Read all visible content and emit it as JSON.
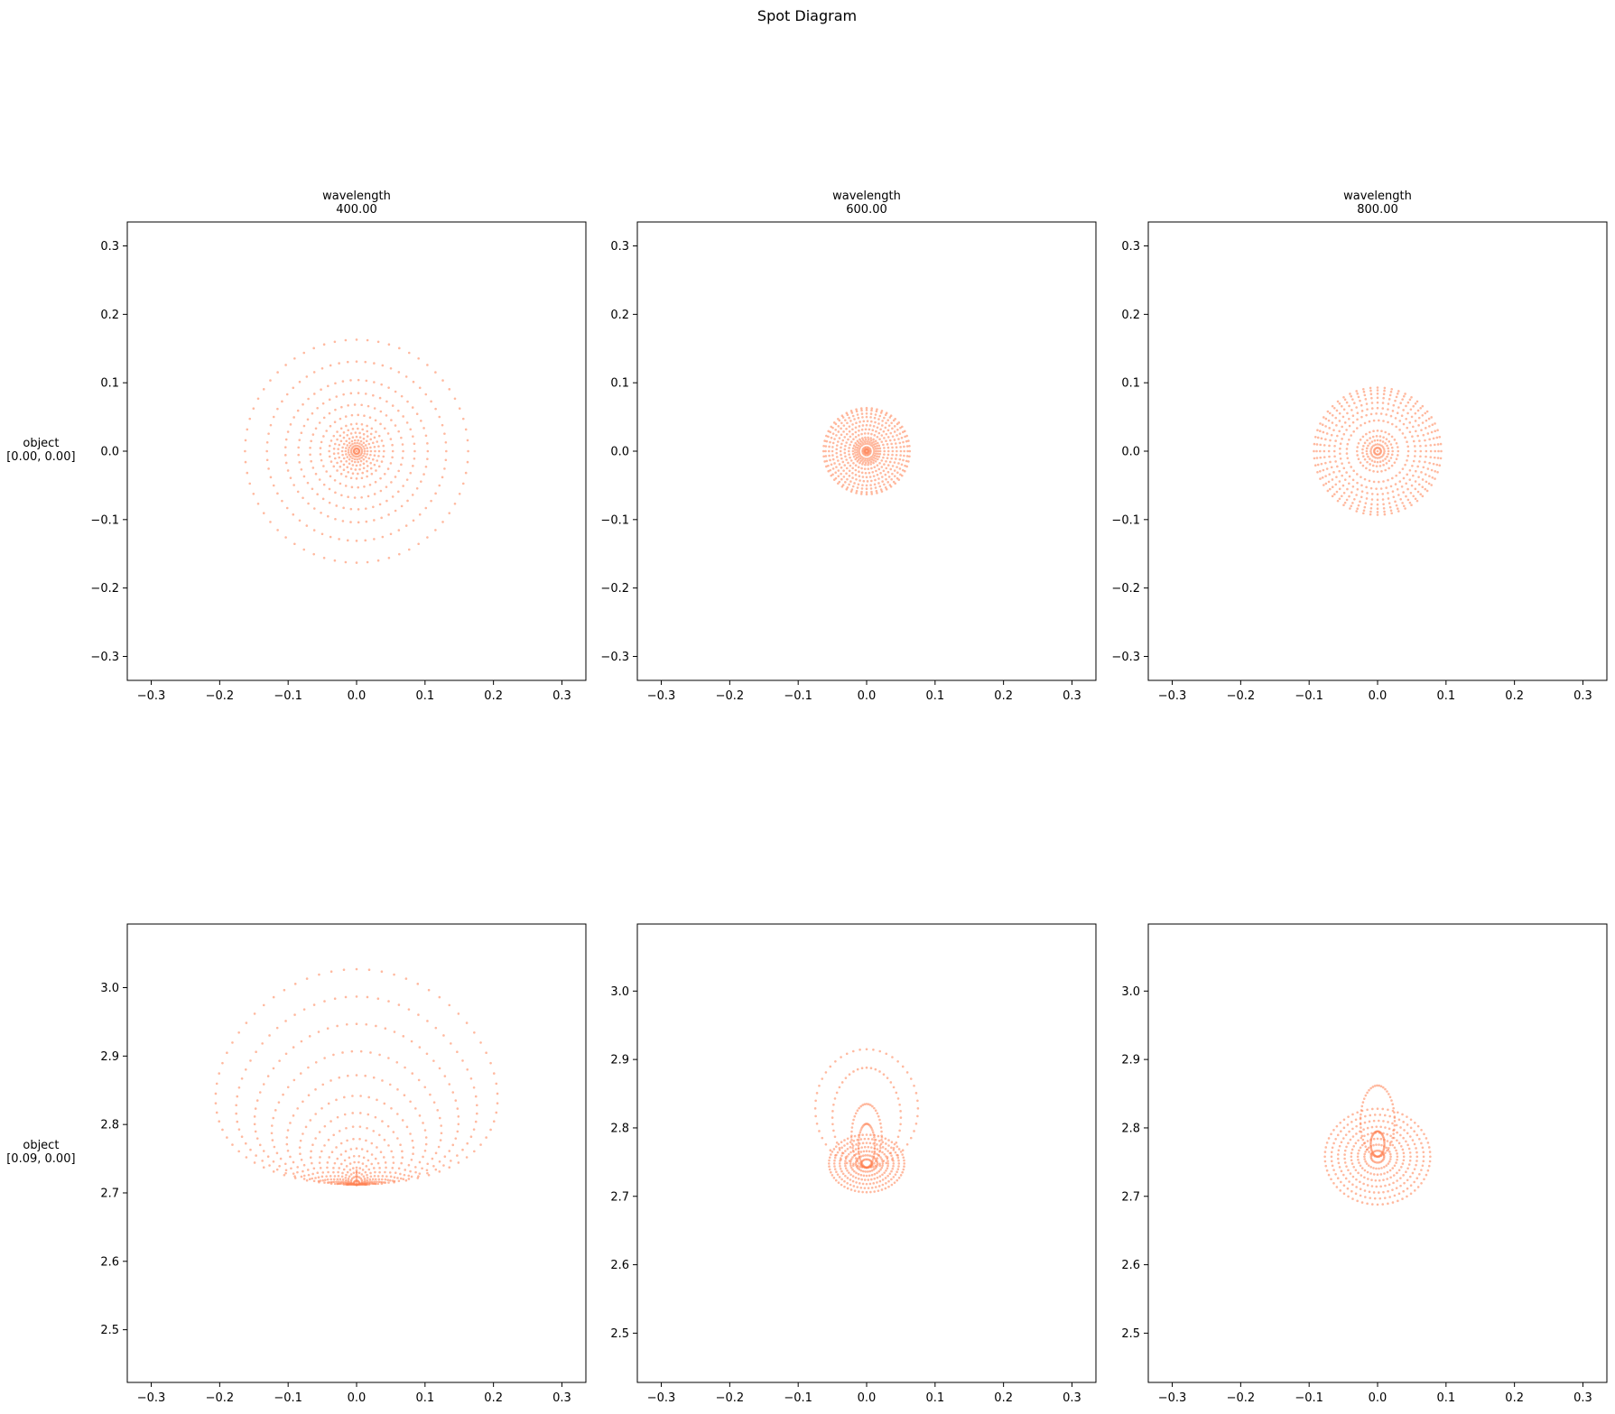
{
  "figure": {
    "title": "Spot Diagram",
    "background": "#ffffff",
    "point_color": "#ff7f50"
  },
  "chart_data": [
    {
      "type": "scatter",
      "column_title": "wavelength\n400.00",
      "row_label": "object\n[0.00, 0.00]",
      "xlim": [
        -0.335,
        0.335
      ],
      "ylim": [
        -0.335,
        0.335
      ],
      "xticks": [
        -0.3,
        -0.2,
        -0.1,
        0.0,
        0.1,
        0.2,
        0.3
      ],
      "yticks": [
        -0.3,
        -0.2,
        -0.1,
        0.0,
        0.1,
        0.2,
        0.3
      ],
      "tick_format": 1,
      "grid": false,
      "pattern": {
        "kind": "rings",
        "cx": 0.0,
        "cy": 0.0,
        "radii": [
          0.004,
          0.008,
          0.012,
          0.016,
          0.021,
          0.027,
          0.033,
          0.04,
          0.053,
          0.068,
          0.085,
          0.104,
          0.131,
          0.163
        ],
        "points_per_ring": 64
      }
    },
    {
      "type": "scatter",
      "column_title": "wavelength\n600.00",
      "row_label": "",
      "xlim": [
        -0.335,
        0.335
      ],
      "ylim": [
        -0.335,
        0.335
      ],
      "xticks": [
        -0.3,
        -0.2,
        -0.1,
        0.0,
        0.1,
        0.2,
        0.3
      ],
      "yticks": [
        -0.3,
        -0.2,
        -0.1,
        0.0,
        0.1,
        0.2,
        0.3
      ],
      "tick_format": 1,
      "grid": false,
      "pattern": {
        "kind": "rings",
        "cx": 0.0,
        "cy": 0.0,
        "radii": [
          0.003,
          0.006,
          0.011,
          0.014,
          0.017,
          0.02,
          0.026,
          0.032,
          0.038,
          0.044,
          0.05,
          0.055,
          0.06,
          0.063
        ],
        "points_per_ring": 52
      }
    },
    {
      "type": "scatter",
      "column_title": "wavelength\n800.00",
      "row_label": "",
      "xlim": [
        -0.335,
        0.335
      ],
      "ylim": [
        -0.335,
        0.335
      ],
      "xticks": [
        -0.3,
        -0.2,
        -0.1,
        0.0,
        0.1,
        0.2,
        0.3
      ],
      "yticks": [
        -0.3,
        -0.2,
        -0.1,
        0.0,
        0.1,
        0.2,
        0.3
      ],
      "tick_format": 1,
      "grid": false,
      "pattern": {
        "kind": "rings",
        "cx": 0.0,
        "cy": 0.0,
        "radii": [
          0.005,
          0.01,
          0.016,
          0.022,
          0.03,
          0.045,
          0.055,
          0.063,
          0.071,
          0.078,
          0.084,
          0.089,
          0.093
        ],
        "points_per_ring": 56
      }
    },
    {
      "type": "scatter",
      "column_title": "",
      "row_label": "object\n[0.09, 0.00]",
      "xlim": [
        -0.335,
        0.335
      ],
      "ylim": [
        2.423,
        3.093
      ],
      "xticks": [
        -0.3,
        -0.2,
        -0.1,
        0.0,
        0.1,
        0.2,
        0.3
      ],
      "yticks": [
        2.5,
        2.6,
        2.7,
        2.8,
        2.9,
        3.0
      ],
      "tick_format": 1,
      "grid": false,
      "pattern": {
        "kind": "coma",
        "cx": 0.0,
        "apex_y": 2.712,
        "rings": [
          [
            0.004,
            0.006
          ],
          [
            0.008,
            0.012
          ],
          [
            0.012,
            0.018
          ],
          [
            0.016,
            0.025
          ],
          [
            0.021,
            0.033
          ],
          [
            0.027,
            0.042
          ],
          [
            0.034,
            0.053
          ],
          [
            0.043,
            0.067
          ],
          [
            0.054,
            0.085
          ],
          [
            0.067,
            0.105
          ],
          [
            0.083,
            0.13
          ],
          [
            0.102,
            0.16
          ],
          [
            0.124,
            0.195
          ],
          [
            0.149,
            0.235
          ],
          [
            0.176,
            0.275
          ],
          [
            0.206,
            0.315
          ]
        ],
        "points_per_ring": 70
      }
    },
    {
      "type": "scatter",
      "column_title": "",
      "row_label": "",
      "xlim": [
        -0.335,
        0.335
      ],
      "ylim": [
        2.428,
        3.098
      ],
      "xticks": [
        -0.3,
        -0.2,
        -0.1,
        0.0,
        0.1,
        0.2,
        0.3
      ],
      "yticks": [
        2.5,
        2.6,
        2.7,
        2.8,
        2.9,
        3.0
      ],
      "tick_format": 1,
      "grid": false,
      "pattern": {
        "kind": "compound",
        "cx": 0.0,
        "cy": 2.748,
        "rx": 0.055,
        "ry": 0.042,
        "inner_rings": 7,
        "loops": [
          [
            0.012,
            2.742,
            2.806
          ],
          [
            0.022,
            2.742,
            2.835
          ],
          [
            0.05,
            2.742,
            2.888
          ],
          [
            0.075,
            2.742,
            2.915
          ]
        ],
        "points_per_ring": 60
      }
    },
    {
      "type": "scatter",
      "column_title": "",
      "row_label": "",
      "xlim": [
        -0.335,
        0.335
      ],
      "ylim": [
        2.428,
        3.098
      ],
      "xticks": [
        -0.3,
        -0.2,
        -0.1,
        0.0,
        0.1,
        0.2,
        0.3
      ],
      "yticks": [
        2.5,
        2.6,
        2.7,
        2.8,
        2.9,
        3.0
      ],
      "tick_format": 1,
      "grid": false,
      "pattern": {
        "kind": "compound",
        "cx": 0.0,
        "cy": 2.758,
        "rx": 0.077,
        "ry": 0.07,
        "inner_rings": 8,
        "loops": [
          [
            0.01,
            2.758,
            2.795
          ],
          [
            0.025,
            2.758,
            2.862
          ]
        ],
        "points_per_ring": 64
      }
    }
  ]
}
